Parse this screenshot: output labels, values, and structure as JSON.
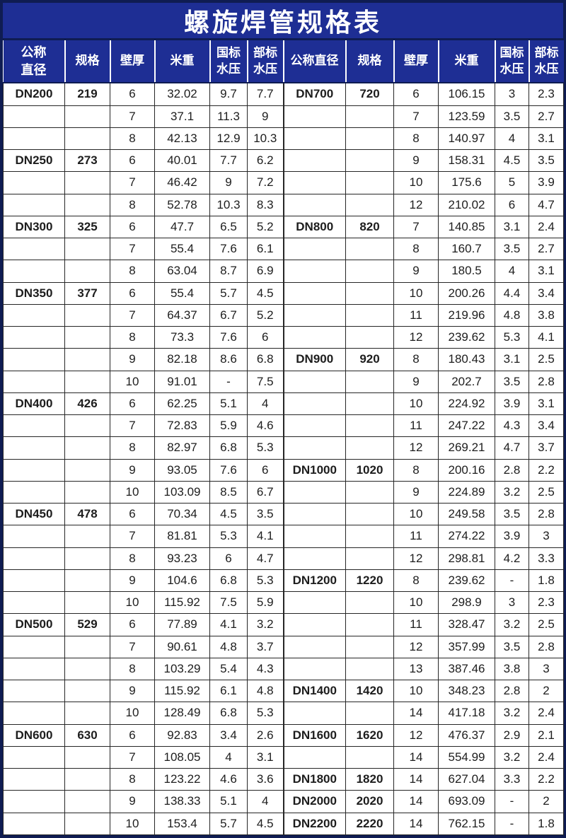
{
  "page_title": "螺旋焊管规格表",
  "colors": {
    "band_blue": "#1e2e94",
    "frame_navy": "#0f1c52",
    "grid_dark": "#262626",
    "text_dark": "#1d1d1d",
    "header_text": "#ffffff"
  },
  "table": {
    "headers_left": [
      {
        "lines": [
          "公称",
          "直径"
        ]
      },
      {
        "lines": [
          "规格"
        ]
      },
      {
        "lines": [
          "壁厚"
        ]
      },
      {
        "lines": [
          "米重"
        ]
      },
      {
        "lines": [
          "国标",
          "水压"
        ]
      },
      {
        "lines": [
          "部标",
          "水压"
        ]
      }
    ],
    "headers_right": [
      {
        "lines": [
          "公称直径"
        ]
      },
      {
        "lines": [
          "规格"
        ]
      },
      {
        "lines": [
          "壁厚"
        ]
      },
      {
        "lines": [
          "米重"
        ]
      },
      {
        "lines": [
          "国标",
          "水压"
        ]
      },
      {
        "lines": [
          "部标",
          "水压"
        ]
      }
    ],
    "rows": [
      [
        "DN200",
        "219",
        "6",
        "32.02",
        "9.7",
        "7.7",
        "DN700",
        "720",
        "6",
        "106.15",
        "3",
        "2.3"
      ],
      [
        "",
        "",
        "7",
        "37.1",
        "11.3",
        "9",
        "",
        "",
        "7",
        "123.59",
        "3.5",
        "2.7"
      ],
      [
        "",
        "",
        "8",
        "42.13",
        "12.9",
        "10.3",
        "",
        "",
        "8",
        "140.97",
        "4",
        "3.1"
      ],
      [
        "DN250",
        "273",
        "6",
        "40.01",
        "7.7",
        "6.2",
        "",
        "",
        "9",
        "158.31",
        "4.5",
        "3.5"
      ],
      [
        "",
        "",
        "7",
        "46.42",
        "9",
        "7.2",
        "",
        "",
        "10",
        "175.6",
        "5",
        "3.9"
      ],
      [
        "",
        "",
        "8",
        "52.78",
        "10.3",
        "8.3",
        "",
        "",
        "12",
        "210.02",
        "6",
        "4.7"
      ],
      [
        "DN300",
        "325",
        "6",
        "47.7",
        "6.5",
        "5.2",
        "DN800",
        "820",
        "7",
        "140.85",
        "3.1",
        "2.4"
      ],
      [
        "",
        "",
        "7",
        "55.4",
        "7.6",
        "6.1",
        "",
        "",
        "8",
        "160.7",
        "3.5",
        "2.7"
      ],
      [
        "",
        "",
        "8",
        "63.04",
        "8.7",
        "6.9",
        "",
        "",
        "9",
        "180.5",
        "4",
        "3.1"
      ],
      [
        "DN350",
        "377",
        "6",
        "55.4",
        "5.7",
        "4.5",
        "",
        "",
        "10",
        "200.26",
        "4.4",
        "3.4"
      ],
      [
        "",
        "",
        "7",
        "64.37",
        "6.7",
        "5.2",
        "",
        "",
        "11",
        "219.96",
        "4.8",
        "3.8"
      ],
      [
        "",
        "",
        "8",
        "73.3",
        "7.6",
        "6",
        "",
        "",
        "12",
        "239.62",
        "5.3",
        "4.1"
      ],
      [
        "",
        "",
        "9",
        "82.18",
        "8.6",
        "6.8",
        "DN900",
        "920",
        "8",
        "180.43",
        "3.1",
        "2.5"
      ],
      [
        "",
        "",
        "10",
        "91.01",
        "-",
        "7.5",
        "",
        "",
        "9",
        "202.7",
        "3.5",
        "2.8"
      ],
      [
        "DN400",
        "426",
        "6",
        "62.25",
        "5.1",
        "4",
        "",
        "",
        "10",
        "224.92",
        "3.9",
        "3.1"
      ],
      [
        "",
        "",
        "7",
        "72.83",
        "5.9",
        "4.6",
        "",
        "",
        "11",
        "247.22",
        "4.3",
        "3.4"
      ],
      [
        "",
        "",
        "8",
        "82.97",
        "6.8",
        "5.3",
        "",
        "",
        "12",
        "269.21",
        "4.7",
        "3.7"
      ],
      [
        "",
        "",
        "9",
        "93.05",
        "7.6",
        "6",
        "DN1000",
        "1020",
        "8",
        "200.16",
        "2.8",
        "2.2"
      ],
      [
        "",
        "",
        "10",
        "103.09",
        "8.5",
        "6.7",
        "",
        "",
        "9",
        "224.89",
        "3.2",
        "2.5"
      ],
      [
        "DN450",
        "478",
        "6",
        "70.34",
        "4.5",
        "3.5",
        "",
        "",
        "10",
        "249.58",
        "3.5",
        "2.8"
      ],
      [
        "",
        "",
        "7",
        "81.81",
        "5.3",
        "4.1",
        "",
        "",
        "11",
        "274.22",
        "3.9",
        "3"
      ],
      [
        "",
        "",
        "8",
        "93.23",
        "6",
        "4.7",
        "",
        "",
        "12",
        "298.81",
        "4.2",
        "3.3"
      ],
      [
        "",
        "",
        "9",
        "104.6",
        "6.8",
        "5.3",
        "DN1200",
        "1220",
        "8",
        "239.62",
        "-",
        "1.8"
      ],
      [
        "",
        "",
        "10",
        "115.92",
        "7.5",
        "5.9",
        "",
        "",
        "10",
        "298.9",
        "3",
        "2.3"
      ],
      [
        "DN500",
        "529",
        "6",
        "77.89",
        "4.1",
        "3.2",
        "",
        "",
        "11",
        "328.47",
        "3.2",
        "2.5"
      ],
      [
        "",
        "",
        "7",
        "90.61",
        "4.8",
        "3.7",
        "",
        "",
        "12",
        "357.99",
        "3.5",
        "2.8"
      ],
      [
        "",
        "",
        "8",
        "103.29",
        "5.4",
        "4.3",
        "",
        "",
        "13",
        "387.46",
        "3.8",
        "3"
      ],
      [
        "",
        "",
        "9",
        "115.92",
        "6.1",
        "4.8",
        "DN1400",
        "1420",
        "10",
        "348.23",
        "2.8",
        "2"
      ],
      [
        "",
        "",
        "10",
        "128.49",
        "6.8",
        "5.3",
        "",
        "",
        "14",
        "417.18",
        "3.2",
        "2.4"
      ],
      [
        "DN600",
        "630",
        "6",
        "92.83",
        "3.4",
        "2.6",
        "DN1600",
        "1620",
        "12",
        "476.37",
        "2.9",
        "2.1"
      ],
      [
        "",
        "",
        "7",
        "108.05",
        "4",
        "3.1",
        "",
        "",
        "14",
        "554.99",
        "3.2",
        "2.4"
      ],
      [
        "",
        "",
        "8",
        "123.22",
        "4.6",
        "3.6",
        "DN1800",
        "1820",
        "14",
        "627.04",
        "3.3",
        "2.2"
      ],
      [
        "",
        "",
        "9",
        "138.33",
        "5.1",
        "4",
        "DN2000",
        "2020",
        "14",
        "693.09",
        "-",
        "2"
      ],
      [
        "",
        "",
        "10",
        "153.4",
        "5.7",
        "4.5",
        "DN2200",
        "2220",
        "14",
        "762.15",
        "-",
        "1.8"
      ]
    ]
  }
}
